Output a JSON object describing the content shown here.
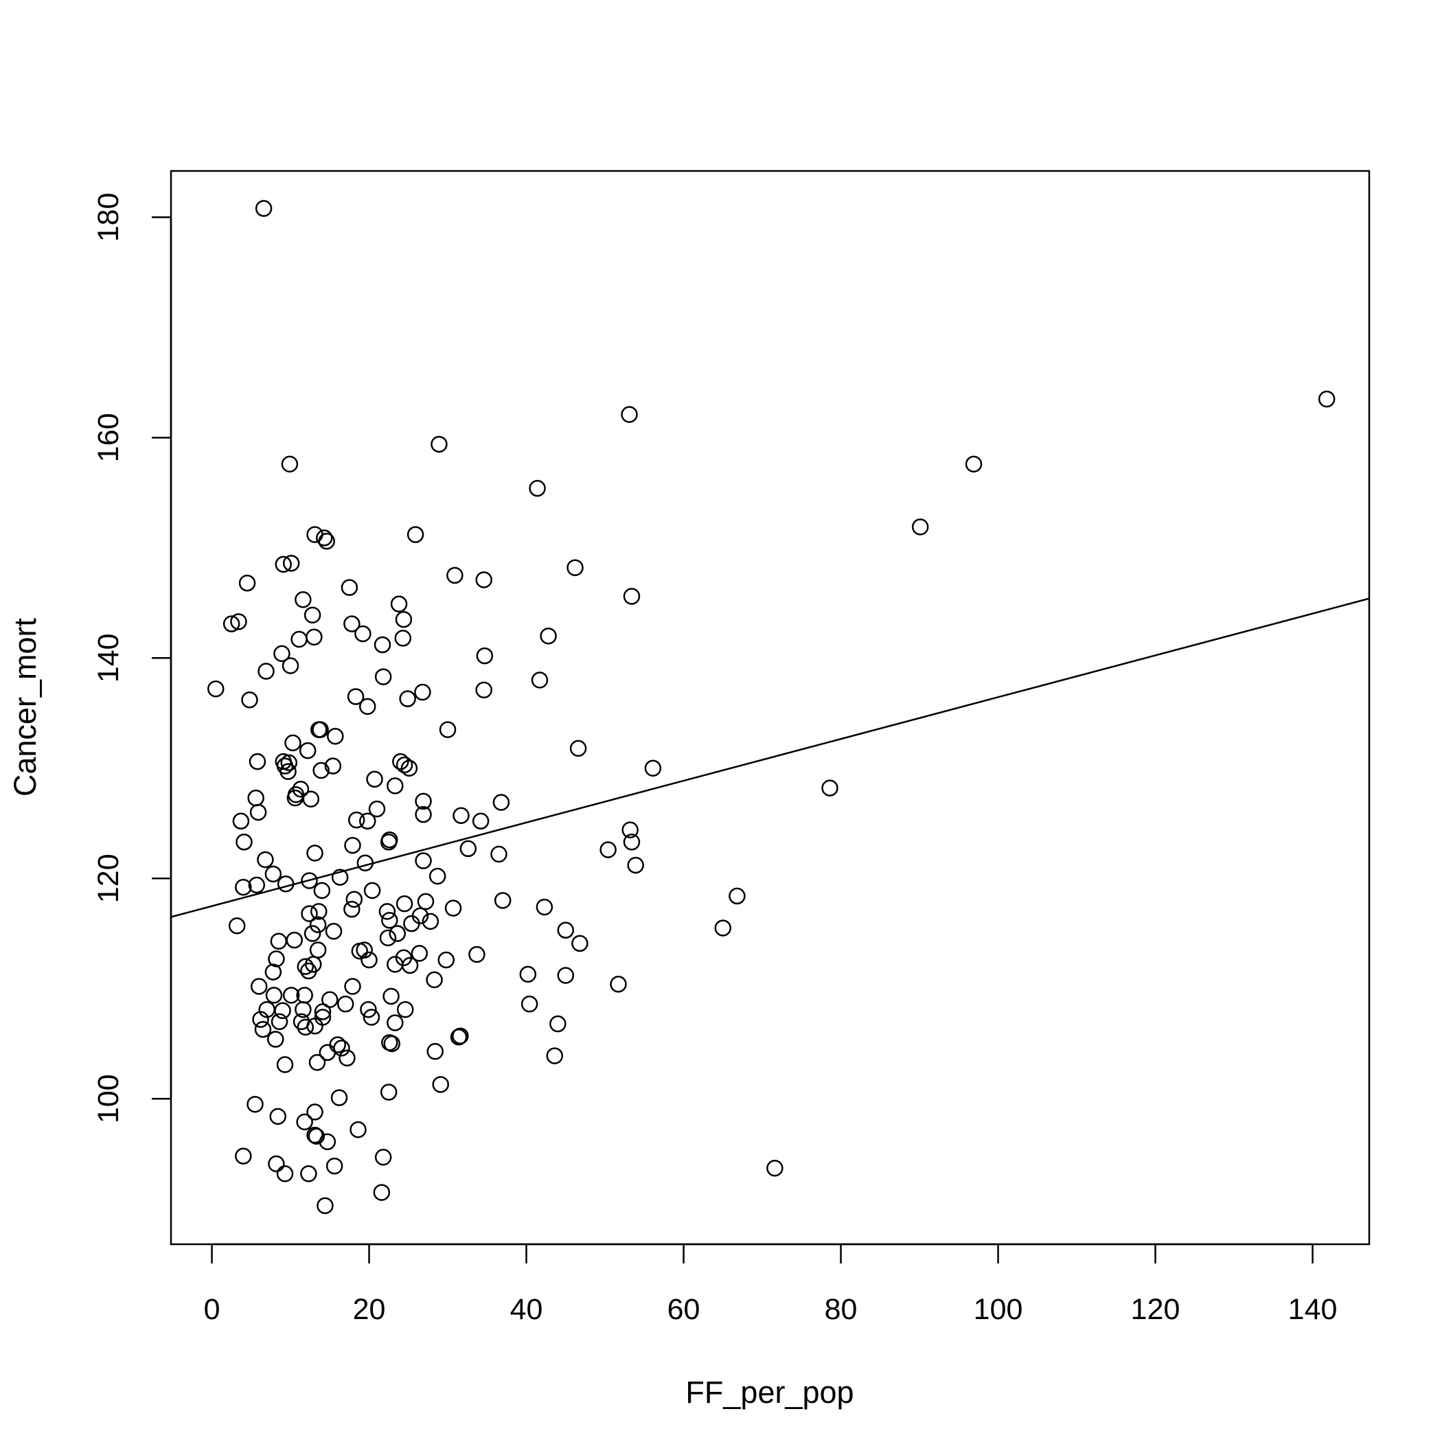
{
  "chart_data": {
    "type": "scatter",
    "title": "",
    "xlabel": "FF_per_pop",
    "ylabel": "Cancer_mort",
    "xlim": [
      -5.2,
      147.2
    ],
    "ylim": [
      86.8,
      184.2
    ],
    "x_ticks": [
      0,
      20,
      40,
      60,
      80,
      100,
      120,
      140
    ],
    "y_ticks": [
      100,
      120,
      140,
      160,
      180
    ],
    "grid": false,
    "legend": "none",
    "marker": "open-circle",
    "color": "#000000",
    "fit_line": {
      "x": [
        -5.2,
        147.2
      ],
      "y": [
        116.5,
        145.4
      ]
    },
    "points": [
      [
        6.6,
        180.8
      ],
      [
        141.8,
        163.5
      ],
      [
        53.1,
        162.1
      ],
      [
        28.9,
        159.4
      ],
      [
        96.9,
        157.6
      ],
      [
        9.9,
        157.6
      ],
      [
        41.4,
        155.4
      ],
      [
        90.1,
        151.9
      ],
      [
        13.1,
        151.2
      ],
      [
        14.3,
        150.9
      ],
      [
        14.6,
        150.6
      ],
      [
        25.9,
        151.2
      ],
      [
        9.1,
        148.5
      ],
      [
        10.1,
        148.6
      ],
      [
        46.2,
        148.2
      ],
      [
        30.9,
        147.5
      ],
      [
        34.6,
        147.1
      ],
      [
        4.5,
        146.8
      ],
      [
        17.5,
        146.4
      ],
      [
        53.4,
        145.6
      ],
      [
        11.6,
        145.3
      ],
      [
        23.8,
        144.9
      ],
      [
        12.8,
        143.9
      ],
      [
        24.4,
        143.5
      ],
      [
        2.5,
        143.1
      ],
      [
        3.4,
        143.3
      ],
      [
        17.8,
        143.1
      ],
      [
        19.2,
        142.2
      ],
      [
        42.8,
        142.0
      ],
      [
        13.0,
        141.9
      ],
      [
        11.1,
        141.7
      ],
      [
        24.3,
        141.8
      ],
      [
        21.7,
        141.2
      ],
      [
        8.9,
        140.4
      ],
      [
        34.7,
        140.2
      ],
      [
        10.0,
        139.3
      ],
      [
        6.9,
        138.8
      ],
      [
        21.8,
        138.3
      ],
      [
        41.7,
        138.0
      ],
      [
        0.5,
        137.2
      ],
      [
        26.8,
        136.9
      ],
      [
        34.6,
        137.1
      ],
      [
        4.8,
        136.2
      ],
      [
        18.3,
        136.5
      ],
      [
        24.9,
        136.3
      ],
      [
        19.8,
        135.6
      ],
      [
        13.6,
        133.5
      ],
      [
        13.8,
        133.5
      ],
      [
        30.0,
        133.5
      ],
      [
        15.7,
        132.9
      ],
      [
        10.3,
        132.3
      ],
      [
        12.2,
        131.6
      ],
      [
        46.6,
        131.8
      ],
      [
        5.8,
        130.6
      ],
      [
        9.1,
        130.6
      ],
      [
        9.8,
        130.5
      ],
      [
        9.3,
        130.2
      ],
      [
        15.4,
        130.2
      ],
      [
        13.9,
        129.8
      ],
      [
        24.0,
        130.6
      ],
      [
        24.5,
        130.3
      ],
      [
        25.1,
        130.0
      ],
      [
        56.1,
        130.0
      ],
      [
        9.7,
        129.7
      ],
      [
        20.7,
        129.0
      ],
      [
        23.3,
        128.4
      ],
      [
        78.6,
        128.2
      ],
      [
        11.3,
        128.1
      ],
      [
        10.7,
        127.6
      ],
      [
        10.6,
        127.3
      ],
      [
        5.6,
        127.3
      ],
      [
        12.6,
        127.2
      ],
      [
        26.9,
        127.0
      ],
      [
        36.8,
        126.9
      ],
      [
        21.0,
        126.3
      ],
      [
        5.9,
        126.0
      ],
      [
        26.9,
        125.8
      ],
      [
        31.7,
        125.7
      ],
      [
        3.7,
        125.2
      ],
      [
        18.4,
        125.3
      ],
      [
        19.8,
        125.2
      ],
      [
        34.2,
        125.2
      ],
      [
        53.2,
        124.4
      ],
      [
        22.6,
        123.5
      ],
      [
        53.4,
        123.3
      ],
      [
        4.1,
        123.3
      ],
      [
        22.5,
        123.3
      ],
      [
        17.9,
        123.0
      ],
      [
        32.6,
        122.7
      ],
      [
        50.4,
        122.6
      ],
      [
        13.1,
        122.3
      ],
      [
        36.5,
        122.2
      ],
      [
        6.8,
        121.7
      ],
      [
        19.5,
        121.4
      ],
      [
        26.9,
        121.6
      ],
      [
        53.9,
        121.2
      ],
      [
        7.8,
        120.4
      ],
      [
        16.3,
        120.1
      ],
      [
        28.7,
        120.2
      ],
      [
        12.4,
        119.8
      ],
      [
        9.4,
        119.5
      ],
      [
        5.7,
        119.4
      ],
      [
        4.0,
        119.2
      ],
      [
        20.4,
        118.9
      ],
      [
        14.0,
        118.9
      ],
      [
        66.8,
        118.4
      ],
      [
        18.1,
        118.1
      ],
      [
        37.0,
        118.0
      ],
      [
        27.2,
        117.9
      ],
      [
        24.5,
        117.7
      ],
      [
        42.3,
        117.4
      ],
      [
        30.7,
        117.3
      ],
      [
        17.8,
        117.2
      ],
      [
        22.3,
        117.0
      ],
      [
        13.6,
        117.0
      ],
      [
        12.4,
        116.8
      ],
      [
        26.5,
        116.6
      ],
      [
        22.6,
        116.2
      ],
      [
        27.8,
        116.1
      ],
      [
        25.4,
        115.9
      ],
      [
        13.5,
        115.8
      ],
      [
        3.2,
        115.7
      ],
      [
        65.0,
        115.5
      ],
      [
        45.0,
        115.3
      ],
      [
        15.5,
        115.2
      ],
      [
        12.8,
        115.0
      ],
      [
        23.6,
        115.0
      ],
      [
        22.4,
        114.6
      ],
      [
        8.5,
        114.3
      ],
      [
        10.5,
        114.4
      ],
      [
        46.8,
        114.1
      ],
      [
        13.5,
        113.5
      ],
      [
        18.8,
        113.4
      ],
      [
        19.4,
        113.5
      ],
      [
        26.4,
        113.2
      ],
      [
        33.7,
        113.1
      ],
      [
        8.2,
        112.7
      ],
      [
        20.0,
        112.6
      ],
      [
        24.4,
        112.8
      ],
      [
        29.8,
        112.6
      ],
      [
        12.9,
        112.2
      ],
      [
        11.9,
        112.0
      ],
      [
        23.3,
        112.2
      ],
      [
        25.2,
        112.1
      ],
      [
        7.8,
        111.5
      ],
      [
        12.3,
        111.6
      ],
      [
        40.2,
        111.3
      ],
      [
        45.0,
        111.2
      ],
      [
        28.3,
        110.8
      ],
      [
        51.7,
        110.4
      ],
      [
        6.0,
        110.2
      ],
      [
        17.9,
        110.2
      ],
      [
        7.9,
        109.4
      ],
      [
        10.1,
        109.4
      ],
      [
        11.8,
        109.4
      ],
      [
        22.8,
        109.3
      ],
      [
        15.0,
        109.0
      ],
      [
        17.0,
        108.6
      ],
      [
        40.4,
        108.6
      ],
      [
        7.0,
        108.1
      ],
      [
        11.6,
        108.1
      ],
      [
        9.0,
        108.0
      ],
      [
        14.1,
        107.9
      ],
      [
        19.9,
        108.1
      ],
      [
        24.6,
        108.1
      ],
      [
        6.2,
        107.2
      ],
      [
        14.1,
        107.4
      ],
      [
        20.3,
        107.4
      ],
      [
        8.6,
        107.0
      ],
      [
        11.4,
        107.0
      ],
      [
        23.3,
        106.9
      ],
      [
        44.0,
        106.8
      ],
      [
        11.9,
        106.5
      ],
      [
        13.1,
        106.6
      ],
      [
        6.5,
        106.3
      ],
      [
        8.1,
        105.4
      ],
      [
        31.4,
        105.6
      ],
      [
        31.6,
        105.7
      ],
      [
        22.6,
        105.1
      ],
      [
        22.9,
        105.0
      ],
      [
        16.0,
        104.9
      ],
      [
        16.5,
        104.6
      ],
      [
        14.7,
        104.2
      ],
      [
        28.4,
        104.3
      ],
      [
        17.2,
        103.7
      ],
      [
        43.6,
        103.9
      ],
      [
        13.4,
        103.3
      ],
      [
        9.3,
        103.1
      ],
      [
        29.1,
        101.3
      ],
      [
        22.5,
        100.6
      ],
      [
        16.2,
        100.1
      ],
      [
        5.5,
        99.5
      ],
      [
        13.1,
        98.8
      ],
      [
        8.4,
        98.4
      ],
      [
        11.8,
        97.9
      ],
      [
        18.6,
        97.2
      ],
      [
        13.1,
        96.7
      ],
      [
        13.3,
        96.6
      ],
      [
        14.7,
        96.1
      ],
      [
        4.0,
        94.8
      ],
      [
        21.8,
        94.7
      ],
      [
        8.2,
        94.1
      ],
      [
        15.6,
        93.9
      ],
      [
        71.6,
        93.7
      ],
      [
        9.3,
        93.2
      ],
      [
        12.3,
        93.2
      ],
      [
        21.6,
        91.5
      ],
      [
        14.4,
        90.3
      ]
    ]
  }
}
